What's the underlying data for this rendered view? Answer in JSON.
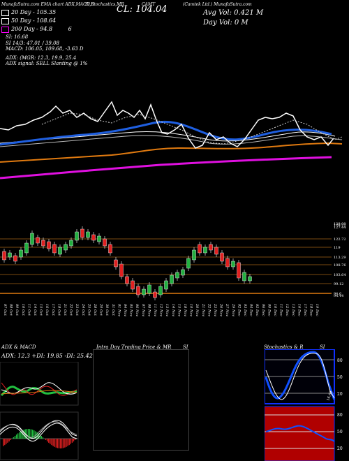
{
  "header": {
    "top_left": "MunafaSutra.com EMA chart ADX,MACD,R",
    "indicators": "SI,Stochastics,MR",
    "symbol": "CAMT",
    "company": "(Camtek Ltd.) MunafaSutra.com",
    "close": "CL: 104.04",
    "avg_vol": "Avg Vol: 0.421 M",
    "day_vol": "Day Vol: 0  M"
  },
  "ema_legend": [
    {
      "label": "20  Day - 105.35",
      "color": "#ffffff"
    },
    {
      "label": "50  Day - 108.64",
      "color": "#ffffff"
    },
    {
      "label": "200  Day - 94.8",
      "color": "#ff00ff"
    },
    {
      "label": "6",
      "color": "#ffffff"
    }
  ],
  "indicator_lines": [
    "SI: 16.68",
    "SI 14/3: 47.01 / 39.08",
    "MACD: 106.05, 109.68, -3.63 D"
  ],
  "adx_lines": [
    "ADX:                     (MGR: 12.3, 19.9, 25.4",
    "ADX  signal: SELL  Slanting @ 1%"
  ],
  "price_levels": [
    "129.00",
    "128.22",
    "127.44",
    "122.72",
    "119",
    "113.29",
    "108.76",
    "103.64",
    "99.12",
    "94.6",
    "94.44"
  ],
  "dates": [
    "07 Oct",
    "08 Oct",
    "09 Oct",
    "10 Oct",
    "11 Oct",
    "14 Oct",
    "15 Oct",
    "16 Oct",
    "17 Oct",
    "18 Oct",
    "21 Oct",
    "22 Oct",
    "23 Oct",
    "24 Oct",
    "25 Oct",
    "28 Oct",
    "29 Oct",
    "30 Oct",
    "31 Oct",
    "01 Nov",
    "04 Nov",
    "05 Nov",
    "06 Nov",
    "07 Nov",
    "08 Nov",
    "11 Nov",
    "12 Nov",
    "13 Nov",
    "14 Nov",
    "15 Nov",
    "18 Nov",
    "19 Nov",
    "20 Nov",
    "21 Nov",
    "22 Nov",
    "25 Nov",
    "26 Nov",
    "27 Nov",
    "29 Nov",
    "02 Dec",
    "03 Dec",
    "04 Dec",
    "05 Dec",
    "06 Dec",
    "09 Dec",
    "10 Dec",
    "11 Dec",
    "12 Dec",
    "13 Dec",
    "16 Dec",
    "17 Dec",
    "18 Dec",
    "19 Dec"
  ],
  "panels": {
    "adx": {
      "title": "ADX  & MACD",
      "readout": "ADX: 12.3  +DI: 19.85  -DI: 25.42"
    },
    "intraday": {
      "title": "Intra  Day Trading Price  & MR",
      "right_title": "SI"
    },
    "stoch": {
      "title": "Stochastics & R",
      "right_title": "SI",
      "ticks_top": [
        "80",
        "50",
        "20"
      ],
      "ticks_bottom": [
        "80",
        "50",
        "20"
      ],
      "corner_label": "16.68"
    }
  },
  "colors": {
    "ema_blue": "#1f5fe0",
    "ema_orange": "#e07a10",
    "ema_magenta": "#e010e0",
    "candle_up": "#22b040",
    "candle_down": "#e02020",
    "stoch_blue": "#1050ff",
    "rsi_bg": "#b00000"
  },
  "chart_data": {
    "type": "line",
    "title": "",
    "x": [],
    "series": []
  }
}
